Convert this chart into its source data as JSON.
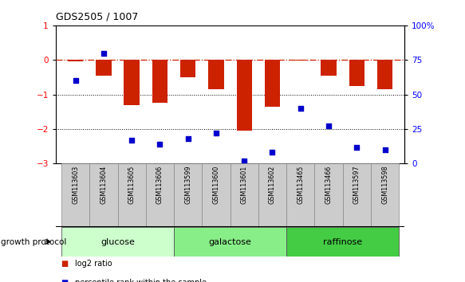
{
  "title": "GDS2505 / 1007",
  "samples": [
    "GSM113603",
    "GSM113604",
    "GSM113605",
    "GSM113606",
    "GSM113599",
    "GSM113600",
    "GSM113601",
    "GSM113602",
    "GSM113465",
    "GSM113466",
    "GSM113597",
    "GSM113598"
  ],
  "log2_ratio": [
    -0.05,
    -0.45,
    -1.3,
    -1.25,
    -0.5,
    -0.85,
    -2.05,
    -1.35,
    -0.02,
    -0.45,
    -0.75,
    -0.85
  ],
  "percentile_rank": [
    60,
    80,
    17,
    14,
    18,
    22,
    2,
    8,
    40,
    27,
    12,
    10
  ],
  "groups": [
    {
      "label": "glucose",
      "start": 0,
      "end": 4,
      "color": "#ccffcc"
    },
    {
      "label": "galactose",
      "start": 4,
      "end": 8,
      "color": "#88ee88"
    },
    {
      "label": "raffinose",
      "start": 8,
      "end": 12,
      "color": "#44cc44"
    }
  ],
  "group_protocol_label": "growth protocol",
  "ylim_left": [
    -3,
    1
  ],
  "ylim_right": [
    0,
    100
  ],
  "yticks_left": [
    1,
    0,
    -1,
    -2,
    -3
  ],
  "yticks_right": [
    100,
    75,
    50,
    25,
    0
  ],
  "ytick_labels_right": [
    "100%",
    "75",
    "50",
    "25",
    "0"
  ],
  "dotted_lines": [
    -1,
    -2
  ],
  "bar_color": "#cc2200",
  "scatter_color": "#0000cc",
  "background_color": "#ffffff"
}
